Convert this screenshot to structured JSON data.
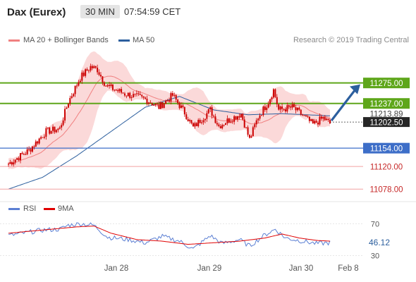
{
  "header": {
    "title": "Dax (Eurex)",
    "timeframe": "30 MIN",
    "time": "07:54:59 CET"
  },
  "legend": {
    "ma20_bb": "MA 20 + Bollinger Bands",
    "ma50": "MA 50",
    "rsi": "RSI",
    "rsi_ma": "9MA"
  },
  "watermark": "Research © 2019 Trading Central",
  "colors": {
    "candle": "#cc0000",
    "bollinger_fill": "#fbd9d9",
    "ma20": "#f08080",
    "ma50": "#2c5f9e",
    "green_level": "#5ea61a",
    "blue_level": "#3d6ec8",
    "red_level": "#f2a2a2",
    "arrow": "#2c5f9e",
    "rsi_line": "#5b7fd3",
    "rsi_ma_line": "#e00000"
  },
  "chart_data": [
    {
      "type": "candlestick",
      "ylim": [
        11060,
        11340
      ],
      "x_labels": [
        "Jan 28",
        "Jan 29",
        "Jan 30",
        "Feb 8"
      ],
      "levels": [
        {
          "value": 11275,
          "label": "11275.00",
          "style": "green-box"
        },
        {
          "value": 11237,
          "label": "11237.00",
          "style": "green-box"
        },
        {
          "value": 11213.89,
          "label": "11213.89",
          "style": "text"
        },
        {
          "value": 11202.5,
          "label": "11202.50",
          "style": "dark-box"
        },
        {
          "value": 11154,
          "label": "11154.00",
          "style": "blue-box"
        },
        {
          "value": 11120,
          "label": "11120.00",
          "style": "red-text"
        },
        {
          "value": 11078,
          "label": "11078.00",
          "style": "red-text"
        }
      ],
      "price_path": [
        {
          "i": 0,
          "p": 11125
        },
        {
          "i": 12,
          "p": 11150
        },
        {
          "i": 22,
          "p": 11185
        },
        {
          "i": 30,
          "p": 11190
        },
        {
          "i": 35,
          "p": 11240
        },
        {
          "i": 42,
          "p": 11285
        },
        {
          "i": 48,
          "p": 11305
        },
        {
          "i": 52,
          "p": 11300
        },
        {
          "i": 57,
          "p": 11270
        },
        {
          "i": 68,
          "p": 11255
        },
        {
          "i": 80,
          "p": 11245
        },
        {
          "i": 88,
          "p": 11230
        },
        {
          "i": 96,
          "p": 11252
        },
        {
          "i": 103,
          "p": 11220
        },
        {
          "i": 108,
          "p": 11192
        },
        {
          "i": 118,
          "p": 11225
        },
        {
          "i": 123,
          "p": 11195
        },
        {
          "i": 128,
          "p": 11205
        },
        {
          "i": 136,
          "p": 11218
        },
        {
          "i": 141,
          "p": 11170
        },
        {
          "i": 146,
          "p": 11212
        },
        {
          "i": 152,
          "p": 11240
        },
        {
          "i": 155,
          "p": 11262
        },
        {
          "i": 158,
          "p": 11225
        },
        {
          "i": 166,
          "p": 11230
        },
        {
          "i": 172,
          "p": 11215
        },
        {
          "i": 178,
          "p": 11198
        },
        {
          "i": 184,
          "p": 11210
        },
        {
          "i": 188,
          "p": 11200
        }
      ],
      "ma50_path": [
        {
          "i": 0,
          "p": 11078
        },
        {
          "i": 20,
          "p": 11100
        },
        {
          "i": 40,
          "p": 11140
        },
        {
          "i": 60,
          "p": 11185
        },
        {
          "i": 80,
          "p": 11230
        },
        {
          "i": 100,
          "p": 11250
        },
        {
          "i": 120,
          "p": 11225
        },
        {
          "i": 140,
          "p": 11216
        },
        {
          "i": 160,
          "p": 11218
        },
        {
          "i": 188,
          "p": 11214
        }
      ],
      "forecast_arrow": {
        "from": 11202.5,
        "to": 11275
      }
    },
    {
      "type": "line",
      "ylim": [
        25,
        80
      ],
      "y_ticks": [
        70,
        30
      ],
      "last_value": "46.12",
      "rsi_path": [
        {
          "i": 0,
          "p": 55
        },
        {
          "i": 20,
          "p": 62
        },
        {
          "i": 30,
          "p": 63
        },
        {
          "i": 35,
          "p": 68
        },
        {
          "i": 42,
          "p": 70
        },
        {
          "i": 50,
          "p": 68
        },
        {
          "i": 58,
          "p": 53
        },
        {
          "i": 70,
          "p": 50
        },
        {
          "i": 80,
          "p": 46
        },
        {
          "i": 90,
          "p": 54
        },
        {
          "i": 100,
          "p": 48
        },
        {
          "i": 108,
          "p": 38
        },
        {
          "i": 118,
          "p": 55
        },
        {
          "i": 125,
          "p": 45
        },
        {
          "i": 135,
          "p": 50
        },
        {
          "i": 141,
          "p": 42
        },
        {
          "i": 150,
          "p": 56
        },
        {
          "i": 156,
          "p": 63
        },
        {
          "i": 162,
          "p": 52
        },
        {
          "i": 172,
          "p": 48
        },
        {
          "i": 180,
          "p": 45
        },
        {
          "i": 188,
          "p": 46
        }
      ],
      "ma9_path": [
        {
          "i": 0,
          "p": 58
        },
        {
          "i": 20,
          "p": 62
        },
        {
          "i": 40,
          "p": 66
        },
        {
          "i": 50,
          "p": 67
        },
        {
          "i": 60,
          "p": 58
        },
        {
          "i": 75,
          "p": 50
        },
        {
          "i": 90,
          "p": 48
        },
        {
          "i": 105,
          "p": 44
        },
        {
          "i": 120,
          "p": 46
        },
        {
          "i": 135,
          "p": 48
        },
        {
          "i": 150,
          "p": 52
        },
        {
          "i": 160,
          "p": 57
        },
        {
          "i": 170,
          "p": 52
        },
        {
          "i": 180,
          "p": 49
        },
        {
          "i": 188,
          "p": 48
        }
      ]
    }
  ]
}
